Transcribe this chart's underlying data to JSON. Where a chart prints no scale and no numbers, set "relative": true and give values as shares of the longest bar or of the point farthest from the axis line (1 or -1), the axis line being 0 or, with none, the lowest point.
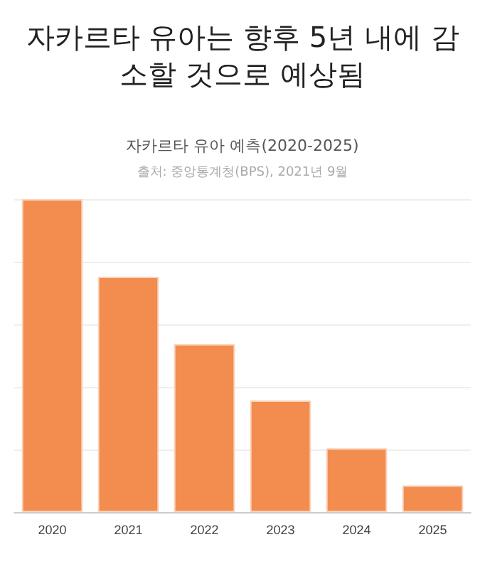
{
  "chart_data": {
    "type": "bar",
    "title": "자카르타 유아는 향후 5년 내에 감소할 것으로 예상됨",
    "subtitle": "자카르타 유아 예측(2020-2025)",
    "annotations": [
      "출처: 중앙통계청(BPS), 2021년 9월"
    ],
    "categories": [
      "2020",
      "2021",
      "2022",
      "2023",
      "2024",
      "2025"
    ],
    "values": [
      1,
      0.752,
      0.537,
      0.357,
      0.204,
      0.085
    ],
    "color": "#f28c4f",
    "relative": true,
    "grid": "y"
  }
}
